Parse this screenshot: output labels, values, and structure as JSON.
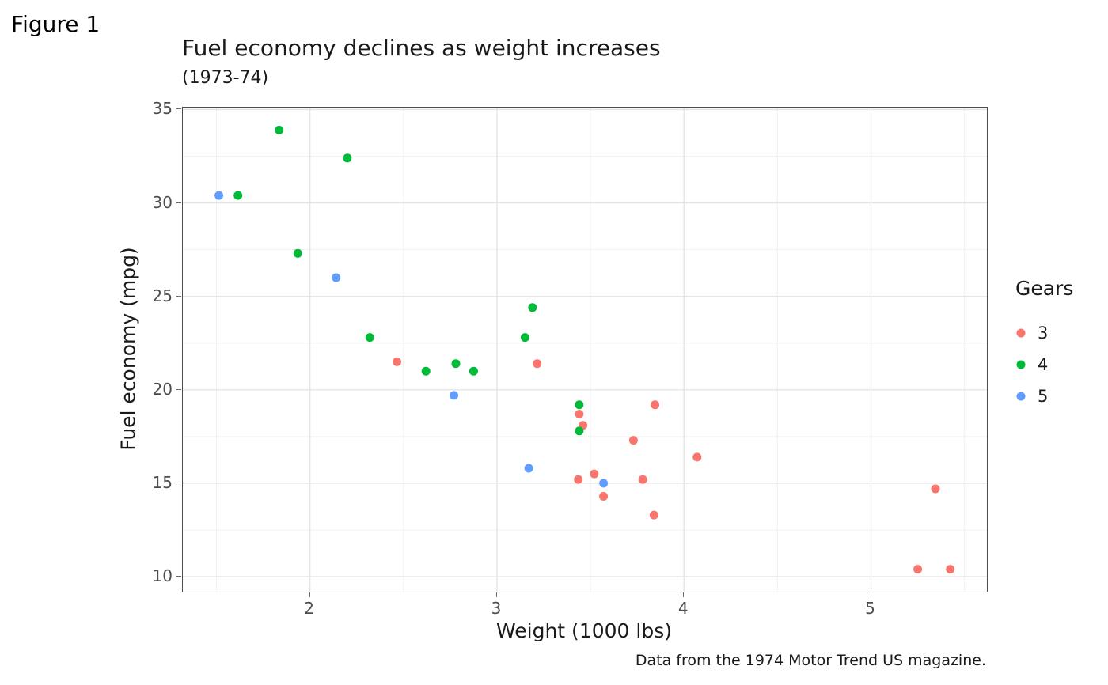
{
  "figure_tag": "Figure 1",
  "chart_data": {
    "type": "scatter",
    "title": "Fuel economy declines as weight increases",
    "subtitle": "(1973-74)",
    "caption": "Data from the 1974 Motor Trend US magazine.",
    "xlabel": "Weight (1000 lbs)",
    "ylabel": "Fuel economy (mpg)",
    "legend_title": "Gears",
    "legend_position": "right",
    "xlim": [
      1.32,
      5.62
    ],
    "ylim": [
      9.2,
      35.1
    ],
    "xticks": [
      2,
      3,
      4,
      5
    ],
    "yticks": [
      10,
      15,
      20,
      25,
      30,
      35
    ],
    "grid": true,
    "series": [
      {
        "name": "3",
        "color": "#F8766D",
        "points": [
          [
            2.465,
            21.5
          ],
          [
            3.215,
            21.4
          ],
          [
            3.44,
            18.7
          ],
          [
            3.46,
            18.1
          ],
          [
            3.435,
            15.2
          ],
          [
            3.52,
            15.5
          ],
          [
            3.57,
            14.3
          ],
          [
            3.73,
            17.3
          ],
          [
            3.78,
            15.2
          ],
          [
            3.84,
            13.3
          ],
          [
            3.845,
            19.2
          ],
          [
            4.07,
            16.4
          ],
          [
            5.25,
            10.4
          ],
          [
            5.345,
            14.7
          ],
          [
            5.424,
            10.4
          ]
        ]
      },
      {
        "name": "4",
        "color": "#00BA38",
        "points": [
          [
            1.615,
            30.4
          ],
          [
            1.835,
            33.9
          ],
          [
            1.935,
            27.3
          ],
          [
            2.2,
            32.4
          ],
          [
            2.32,
            22.8
          ],
          [
            2.62,
            21.0
          ],
          [
            2.78,
            21.4
          ],
          [
            2.875,
            21.0
          ],
          [
            3.15,
            22.8
          ],
          [
            3.19,
            24.4
          ],
          [
            3.44,
            19.2
          ],
          [
            3.44,
            17.8
          ]
        ]
      },
      {
        "name": "5",
        "color": "#619CFF",
        "points": [
          [
            1.513,
            30.4
          ],
          [
            2.14,
            26.0
          ],
          [
            2.77,
            19.7
          ],
          [
            3.17,
            15.8
          ],
          [
            3.57,
            15.0
          ]
        ]
      }
    ]
  }
}
